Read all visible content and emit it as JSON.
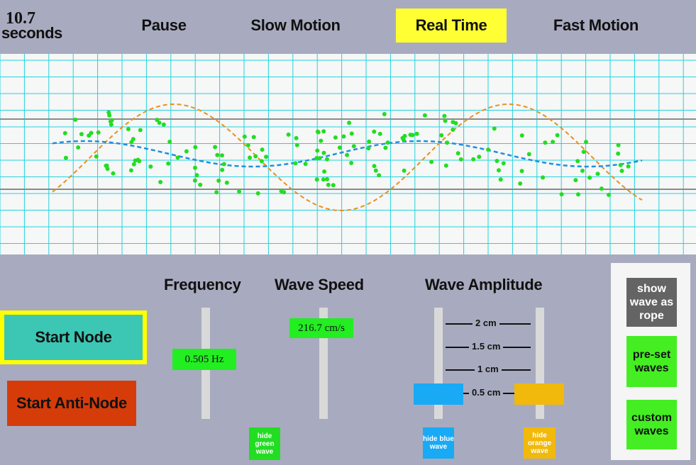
{
  "timer": {
    "value": "10.7",
    "unit": "seconds"
  },
  "speed_controls": [
    {
      "label": "Pause",
      "active": false
    },
    {
      "label": "Slow Motion",
      "active": false
    },
    {
      "label": "Real Time",
      "active": true
    },
    {
      "label": "Fast Motion",
      "active": false
    }
  ],
  "controls": {
    "frequency": {
      "title": "Frequency",
      "value": "0.505 Hz"
    },
    "wave_speed": {
      "title": "Wave Speed",
      "value": "216.7 cm/s"
    },
    "amplitude": {
      "title": "Wave Amplitude",
      "scale": [
        "2 cm",
        "1.5 cm",
        "1 cm",
        "0.5 cm"
      ],
      "blue_level_cm": 0.5,
      "orange_level_cm": 0.5
    }
  },
  "hide_buttons": {
    "green": "hide green wave",
    "blue": "hide blue wave",
    "orange": "hide orange wave"
  },
  "node_buttons": {
    "start_node": "Start Node",
    "start_antinode": "Start Anti-Node"
  },
  "side_buttons": {
    "rope": "show wave as rope",
    "preset": "pre-set waves",
    "custom": "custom waves"
  },
  "colors": {
    "background": "#a8abbf",
    "highlight": "#ffff33",
    "green_wave": "#22dd22",
    "blue_wave": "#1e90e0",
    "orange_wave": "#e8901e",
    "grid": "#22d3dd",
    "start_node": "#3cc7b4",
    "start_antinode": "#d53c0a",
    "value_box": "#22ee22",
    "blue_handle": "#19aaf5",
    "orange_handle": "#f0b90b",
    "rope_button": "#646464",
    "side_green": "#44ee22"
  }
}
